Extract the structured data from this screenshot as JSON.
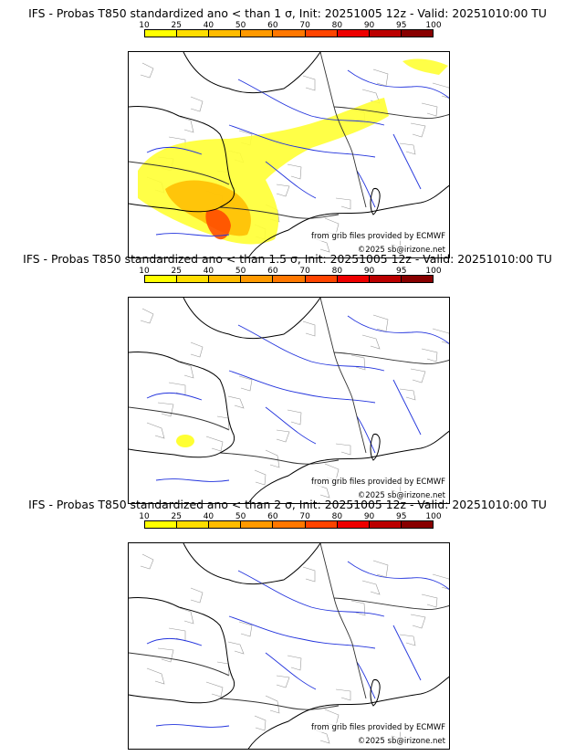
{
  "colorbar": {
    "ticks": [
      "10",
      "25",
      "40",
      "50",
      "60",
      "70",
      "80",
      "90",
      "95",
      "100"
    ],
    "colors": [
      "#ffff00",
      "#ffdd00",
      "#ffbb00",
      "#ff9900",
      "#ff7700",
      "#ff4400",
      "#ee0000",
      "#bb0000",
      "#880000"
    ]
  },
  "panels": [
    {
      "title": "IFS - Probas T850  standardized ano < than 1 σ, Init: 20251005 12z - Valid: 20251010:00 TU",
      "credit_source": "from grib files provided by ECMWF",
      "credit_copyright": "©2025 sb@irizone.net"
    },
    {
      "title": "IFS - Probas T850  standardized ano < than 1.5 σ, Init: 20251005 12z - Valid: 20251010:00 TU",
      "credit_source": "from grib files provided by ECMWF",
      "credit_copyright": "©2025 sb@irizone.net"
    },
    {
      "title": "IFS - Probas T850  standardized ano < than 2 σ, Init: 20251005 12z - Valid: 20251010:00 TU",
      "credit_source": "from grib files provided by ECMWF",
      "credit_copyright": "©2025 sb@irizone.net"
    }
  ]
}
